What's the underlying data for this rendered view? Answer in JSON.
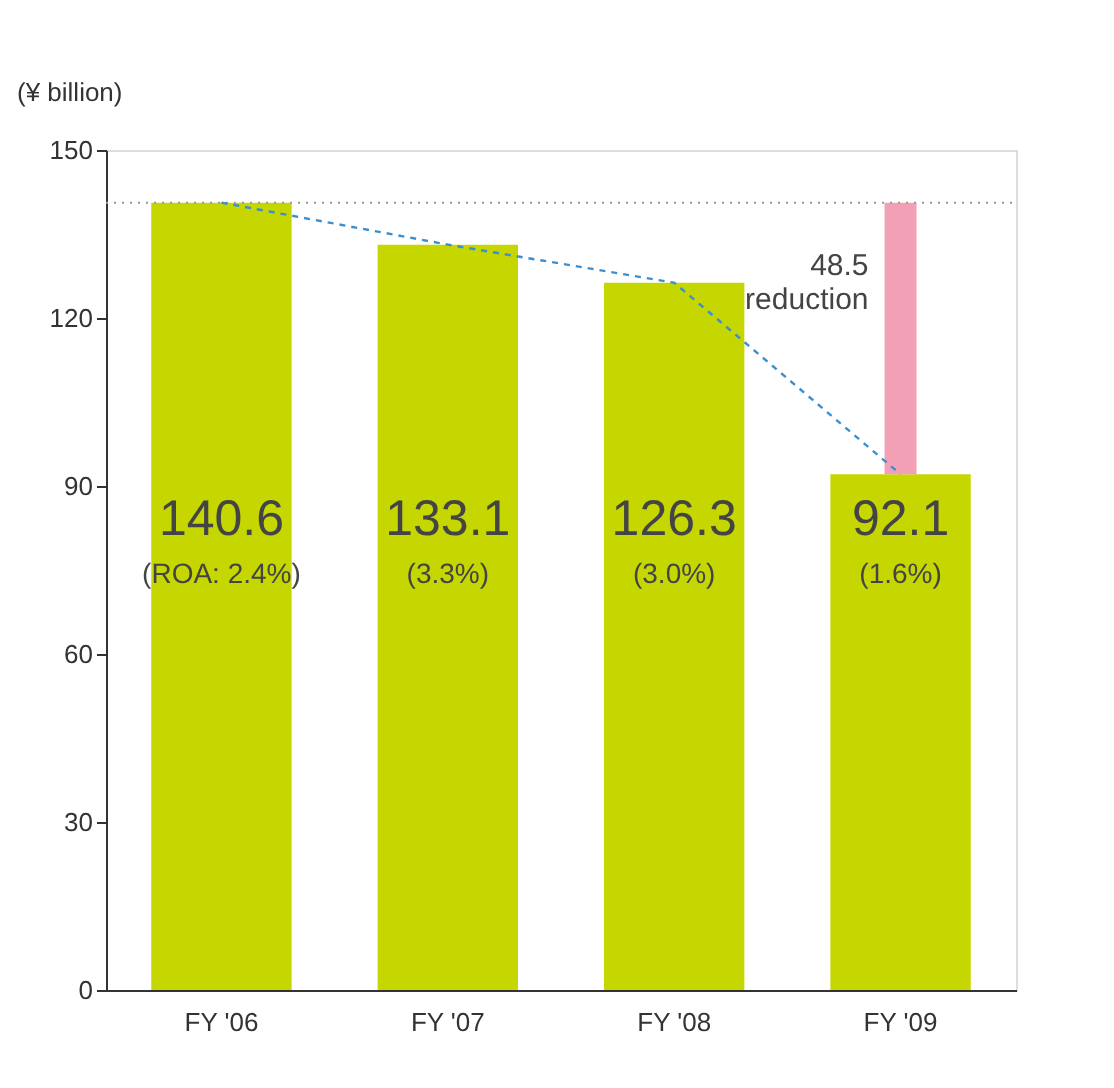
{
  "chart_data": {
    "type": "bar",
    "ylabel": "(¥ billion)",
    "categories": [
      "FY '06",
      "FY '07",
      "FY '08",
      "FY '09"
    ],
    "series": [
      {
        "color": "#c5d600",
        "values": [
          140.6,
          133.1,
          126.3,
          92.1
        ],
        "value_labels": [
          "140.6",
          "133.1",
          "126.3",
          "92.1"
        ]
      },
      {
        "type": "bar",
        "color": "#f2a0b6",
        "base": [
          null,
          null,
          null,
          92.1
        ],
        "values": [
          null,
          null,
          null,
          48.5
        ]
      },
      {
        "type": "line",
        "color": "#3a8fd0",
        "line_style": "dashed",
        "marker": "none",
        "values": [
          140.6,
          133.1,
          126.3,
          92.1
        ]
      }
    ],
    "annotations": [
      "(ROA: 2.4%)",
      "(3.3%)",
      "(3.0%)",
      "(1.6%)",
      "48.5 reduction"
    ],
    "ref_lines": [
      {
        "axis": "y",
        "value": 140.6,
        "color": "#999999",
        "line_style": "dotted"
      }
    ],
    "ylim": [
      0,
      150
    ],
    "yticks": [
      0,
      30,
      60,
      90,
      120,
      150
    ],
    "grid": false
  }
}
